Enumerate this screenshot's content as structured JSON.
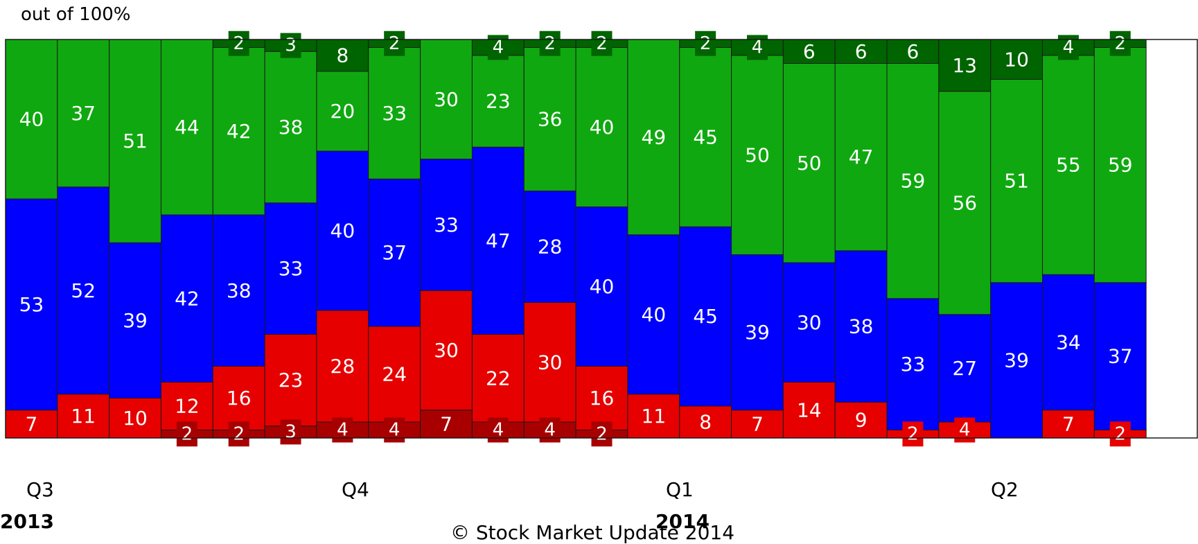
{
  "unit_label": "out of 100%",
  "quarters": [
    "Q3",
    "Q4",
    "Q1",
    "Q2"
  ],
  "years": [
    "2013",
    "2014"
  ],
  "footer": "© Stock Market Update 2014",
  "colors": {
    "dark_red": "#a80000",
    "red": "#e60000",
    "blue": "#0000ff",
    "green": "#10a810",
    "dark_green": "#006400"
  },
  "chart_data": {
    "type": "bar",
    "stacked": true,
    "title": "",
    "xlabel": "",
    "ylabel": "out of 100%",
    "ylim": [
      0,
      100
    ],
    "categories": [
      "",
      "",
      "",
      "",
      "",
      "",
      "",
      "",
      "",
      "",
      "",
      "",
      "",
      "",
      "",
      "",
      "",
      "",
      "",
      "",
      "",
      "",
      ""
    ],
    "series": [
      {
        "key": "dark_red",
        "color": "#a80000",
        "values": [
          0,
          0,
          0,
          2,
          2,
          3,
          4,
          4,
          7,
          4,
          4,
          2,
          0,
          0,
          0,
          0,
          0,
          0,
          0,
          0,
          0,
          0,
          0
        ]
      },
      {
        "key": "red",
        "color": "#e60000",
        "values": [
          7,
          11,
          10,
          12,
          16,
          23,
          28,
          24,
          30,
          22,
          30,
          16,
          11,
          8,
          7,
          14,
          9,
          2,
          4,
          0,
          7,
          2,
          0
        ]
      },
      {
        "key": "blue",
        "color": "#0000ff",
        "values": [
          53,
          52,
          39,
          42,
          38,
          33,
          40,
          37,
          33,
          47,
          28,
          40,
          40,
          45,
          39,
          30,
          38,
          33,
          27,
          39,
          34,
          37,
          0
        ]
      },
      {
        "key": "green",
        "color": "#10a810",
        "values": [
          40,
          37,
          51,
          44,
          42,
          38,
          20,
          33,
          30,
          23,
          36,
          40,
          49,
          45,
          50,
          50,
          47,
          59,
          56,
          51,
          55,
          59,
          0
        ]
      },
      {
        "key": "dark_green",
        "color": "#006400",
        "values": [
          0,
          0,
          0,
          0,
          2,
          3,
          8,
          2,
          0,
          4,
          2,
          2,
          0,
          2,
          4,
          6,
          6,
          6,
          13,
          10,
          4,
          2,
          0
        ]
      }
    ]
  }
}
